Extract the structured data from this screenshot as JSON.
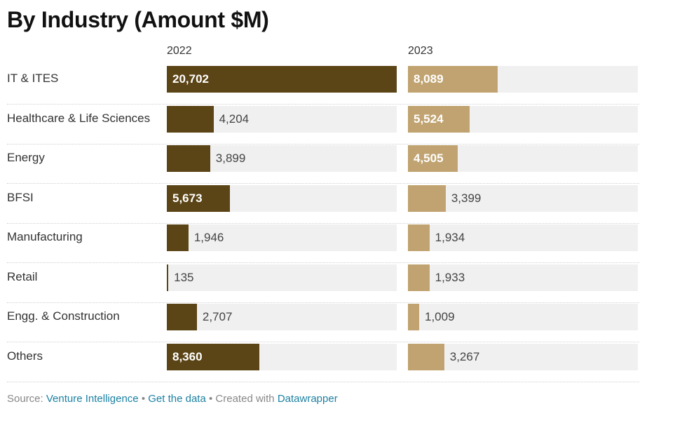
{
  "title": "By Industry (Amount $M)",
  "footer": {
    "source_label": "Source:",
    "source_link": "Venture Intelligence",
    "sep1": "•",
    "data_link": "Get the data",
    "sep2": "•",
    "created_label": "Created with",
    "tool_link": "Datawrapper"
  },
  "colors": {
    "series_2022": "#5b4415",
    "series_2023": "#c0a370",
    "track": "#f0f0f0",
    "link": "#1d81a2"
  },
  "chart_data": {
    "type": "bar",
    "orientation": "horizontal",
    "categories": [
      "IT & ITES",
      "Healthcare & Life Sciences",
      "Energy",
      "BFSI",
      "Manufacturing",
      "Retail",
      "Engg. & Construction",
      "Others"
    ],
    "series": [
      {
        "name": "2022",
        "values": [
          20702,
          4204,
          3899,
          5673,
          1946,
          135,
          2707,
          8360
        ],
        "labels": [
          "20,702",
          "4,204",
          "3,899",
          "5,673",
          "1,946",
          "135",
          "2,707",
          "8,360"
        ]
      },
      {
        "name": "2023",
        "values": [
          8089,
          5524,
          4505,
          3399,
          1934,
          1933,
          1009,
          3267
        ],
        "labels": [
          "8,089",
          "5,524",
          "4,505",
          "3,399",
          "1,934",
          "1,933",
          "1,009",
          "3,267"
        ]
      }
    ],
    "xlim": [
      0,
      20702
    ],
    "layout": "split-columns",
    "grid": false,
    "legend": "column headers"
  }
}
